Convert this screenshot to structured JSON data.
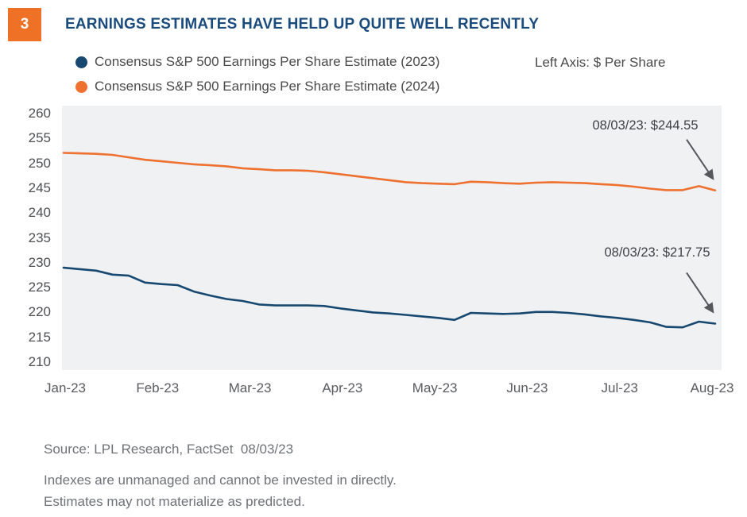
{
  "figure_number": "3",
  "title": "EARNINGS ESTIMATES HAVE HELD UP QUITE WELL RECENTLY",
  "axis_note": "Left Axis: $ Per Share",
  "colors": {
    "accent_orange": "#EE7125",
    "navy": "#17486F",
    "title_navy": "#1A4B7D",
    "plot_background": "#EFF1F3",
    "arrow_gray": "#55585C"
  },
  "footer": {
    "source": "Source: LPL Research, FactSet  08/03/23",
    "disclaimer1": "Indexes are unmanaged and cannot be invested in directly.",
    "disclaimer2": "Estimates may not materialize as predicted."
  },
  "chart_data": {
    "type": "line",
    "title": "EARNINGS ESTIMATES HAVE HELD UP QUITE WELL RECENTLY",
    "ylabel": "$ Per Share",
    "xlabel": "",
    "ylim": [
      210,
      260
    ],
    "yticks": [
      260,
      255,
      250,
      245,
      240,
      235,
      230,
      225,
      220,
      215,
      210
    ],
    "xticks": [
      "Jan-23",
      "Feb-23",
      "Mar-23",
      "Apr-23",
      "May-23",
      "Jun-23",
      "Jul-23",
      "Aug-23"
    ],
    "grid": false,
    "legend_position": "top-left",
    "x_note": "values sampled roughly weekly, Jan-23 through 08/03/23",
    "series": [
      {
        "name": "Consensus S&P 500 Earnings Per Share Estimate (2023)",
        "color": "#17486F",
        "end_date": "08/03/23",
        "end_value": 217.75,
        "values": [
          229.0,
          228.7,
          228.4,
          227.6,
          227.4,
          226.0,
          225.7,
          225.5,
          224.2,
          223.4,
          222.7,
          222.3,
          221.6,
          221.4,
          221.4,
          221.4,
          221.3,
          220.8,
          220.4,
          220.0,
          219.8,
          219.5,
          219.2,
          218.9,
          218.5,
          219.9,
          219.8,
          219.7,
          219.8,
          220.1,
          220.1,
          219.9,
          219.6,
          219.2,
          218.9,
          218.5,
          218.0,
          217.1,
          217.0,
          218.15,
          217.75
        ]
      },
      {
        "name": "Consensus S&P 500 Earnings Per Share Estimate (2024)",
        "color": "#EE7130",
        "end_date": "08/03/23",
        "end_value": 244.55,
        "values": [
          252.1,
          252.0,
          251.9,
          251.7,
          251.2,
          250.7,
          250.4,
          250.1,
          249.8,
          249.6,
          249.4,
          249.0,
          248.8,
          248.6,
          248.6,
          248.5,
          248.2,
          247.8,
          247.4,
          247.0,
          246.6,
          246.2,
          246.0,
          245.9,
          245.8,
          246.3,
          246.2,
          246.0,
          245.9,
          246.1,
          246.2,
          246.1,
          246.0,
          245.8,
          245.6,
          245.3,
          244.9,
          244.6,
          244.6,
          245.4,
          244.55
        ]
      }
    ],
    "annotations": [
      {
        "series": "2024",
        "text": "08/03/23: $244.55"
      },
      {
        "series": "2023",
        "text": "08/03/23: $217.75"
      }
    ]
  }
}
